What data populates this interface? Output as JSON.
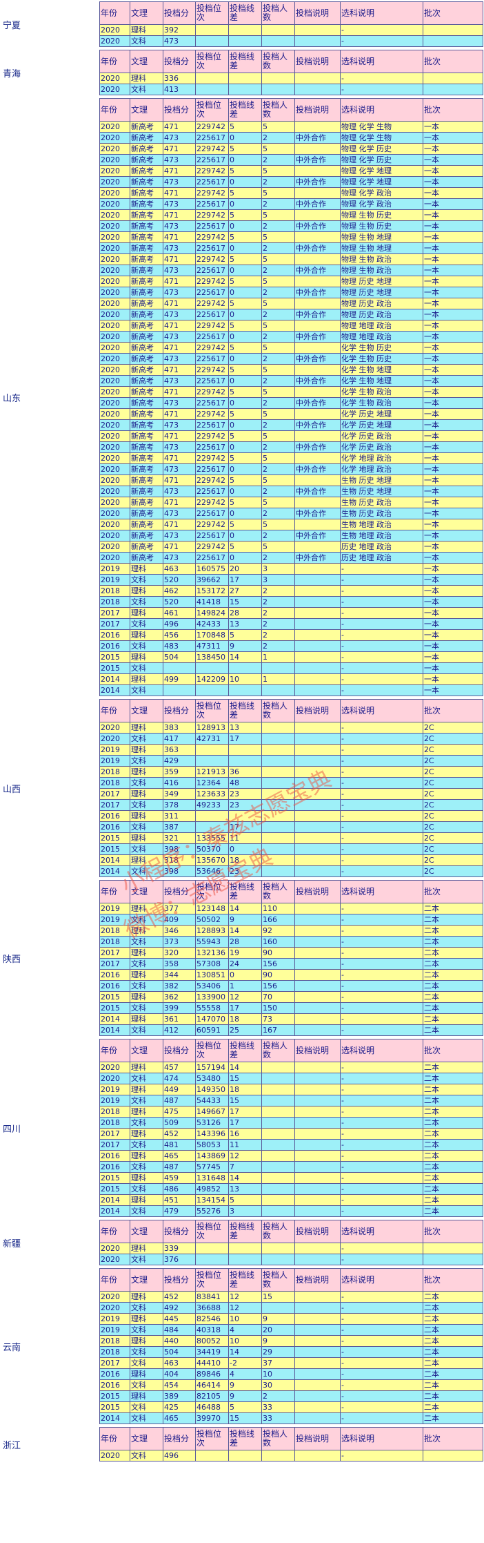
{
  "headers": [
    "年份",
    "文理",
    "投档分",
    "投档位次",
    "投档线差",
    "投档人数",
    "投档说明",
    "选科说明",
    "批次"
  ],
  "watermark": [
    "小程序：秦兹志愿宝典",
    "微博：志愿宝典"
  ],
  "provinces": [
    {
      "name": "宁夏",
      "rows": [
        [
          "2020",
          "理科",
          "392",
          "",
          "",
          "",
          "",
          "-",
          ""
        ],
        [
          "2020",
          "文科",
          "473",
          "",
          "",
          "",
          "",
          "-",
          ""
        ]
      ]
    },
    {
      "name": "青海",
      "rows": [
        [
          "2020",
          "理科",
          "336",
          "",
          "",
          "",
          "",
          "-",
          ""
        ],
        [
          "2020",
          "文科",
          "413",
          "",
          "",
          "",
          "",
          "-",
          ""
        ]
      ]
    },
    {
      "name": "山东",
      "rows": [
        [
          "2020",
          "新高考",
          "471",
          "229742",
          "5",
          "5",
          "",
          "物理 化学 生物",
          "一本"
        ],
        [
          "2020",
          "新高考",
          "473",
          "225617",
          "0",
          "2",
          "中外合作",
          "物理 化学 生物",
          "一本"
        ],
        [
          "2020",
          "新高考",
          "471",
          "229742",
          "5",
          "5",
          "",
          "物理 化学 历史",
          "一本"
        ],
        [
          "2020",
          "新高考",
          "473",
          "225617",
          "0",
          "2",
          "中外合作",
          "物理 化学 历史",
          "一本"
        ],
        [
          "2020",
          "新高考",
          "471",
          "229742",
          "5",
          "5",
          "",
          "物理 化学 地理",
          "一本"
        ],
        [
          "2020",
          "新高考",
          "473",
          "225617",
          "0",
          "2",
          "中外合作",
          "物理 化学 地理",
          "一本"
        ],
        [
          "2020",
          "新高考",
          "471",
          "229742",
          "5",
          "5",
          "",
          "物理 化学 政治",
          "一本"
        ],
        [
          "2020",
          "新高考",
          "473",
          "225617",
          "0",
          "2",
          "中外合作",
          "物理 化学 政治",
          "一本"
        ],
        [
          "2020",
          "新高考",
          "471",
          "229742",
          "5",
          "5",
          "",
          "物理 生物 历史",
          "一本"
        ],
        [
          "2020",
          "新高考",
          "473",
          "225617",
          "0",
          "2",
          "中外合作",
          "物理 生物 历史",
          "一本"
        ],
        [
          "2020",
          "新高考",
          "471",
          "229742",
          "5",
          "5",
          "",
          "物理 生物 地理",
          "一本"
        ],
        [
          "2020",
          "新高考",
          "473",
          "225617",
          "0",
          "2",
          "中外合作",
          "物理 生物 地理",
          "一本"
        ],
        [
          "2020",
          "新高考",
          "471",
          "229742",
          "5",
          "5",
          "",
          "物理 生物 政治",
          "一本"
        ],
        [
          "2020",
          "新高考",
          "473",
          "225617",
          "0",
          "2",
          "中外合作",
          "物理 生物 政治",
          "一本"
        ],
        [
          "2020",
          "新高考",
          "471",
          "229742",
          "5",
          "5",
          "",
          "物理 历史 地理",
          "一本"
        ],
        [
          "2020",
          "新高考",
          "473",
          "225617",
          "0",
          "2",
          "中外合作",
          "物理 历史 地理",
          "一本"
        ],
        [
          "2020",
          "新高考",
          "471",
          "229742",
          "5",
          "5",
          "",
          "物理 历史 政治",
          "一本"
        ],
        [
          "2020",
          "新高考",
          "473",
          "225617",
          "0",
          "2",
          "中外合作",
          "物理 历史 政治",
          "一本"
        ],
        [
          "2020",
          "新高考",
          "471",
          "229742",
          "5",
          "5",
          "",
          "物理 地理 政治",
          "一本"
        ],
        [
          "2020",
          "新高考",
          "473",
          "225617",
          "0",
          "2",
          "中外合作",
          "物理 地理 政治",
          "一本"
        ],
        [
          "2020",
          "新高考",
          "471",
          "229742",
          "5",
          "5",
          "",
          "化学 生物 历史",
          "一本"
        ],
        [
          "2020",
          "新高考",
          "473",
          "225617",
          "0",
          "2",
          "中外合作",
          "化学 生物 历史",
          "一本"
        ],
        [
          "2020",
          "新高考",
          "471",
          "229742",
          "5",
          "5",
          "",
          "化学 生物 地理",
          "一本"
        ],
        [
          "2020",
          "新高考",
          "473",
          "225617",
          "0",
          "2",
          "中外合作",
          "化学 生物 地理",
          "一本"
        ],
        [
          "2020",
          "新高考",
          "471",
          "229742",
          "5",
          "5",
          "",
          "化学 生物 政治",
          "一本"
        ],
        [
          "2020",
          "新高考",
          "473",
          "225617",
          "0",
          "2",
          "中外合作",
          "化学 生物 政治",
          "一本"
        ],
        [
          "2020",
          "新高考",
          "471",
          "229742",
          "5",
          "5",
          "",
          "化学 历史 地理",
          "一本"
        ],
        [
          "2020",
          "新高考",
          "473",
          "225617",
          "0",
          "2",
          "中外合作",
          "化学 历史 地理",
          "一本"
        ],
        [
          "2020",
          "新高考",
          "471",
          "229742",
          "5",
          "5",
          "",
          "化学 历史 政治",
          "一本"
        ],
        [
          "2020",
          "新高考",
          "473",
          "225617",
          "0",
          "2",
          "中外合作",
          "化学 历史 政治",
          "一本"
        ],
        [
          "2020",
          "新高考",
          "471",
          "229742",
          "5",
          "5",
          "",
          "化学 地理 政治",
          "一本"
        ],
        [
          "2020",
          "新高考",
          "473",
          "225617",
          "0",
          "2",
          "中外合作",
          "化学 地理 政治",
          "一本"
        ],
        [
          "2020",
          "新高考",
          "471",
          "229742",
          "5",
          "5",
          "",
          "生物 历史 地理",
          "一本"
        ],
        [
          "2020",
          "新高考",
          "473",
          "225617",
          "0",
          "2",
          "中外合作",
          "生物 历史 地理",
          "一本"
        ],
        [
          "2020",
          "新高考",
          "471",
          "229742",
          "5",
          "5",
          "",
          "生物 历史 政治",
          "一本"
        ],
        [
          "2020",
          "新高考",
          "473",
          "225617",
          "0",
          "2",
          "中外合作",
          "生物 历史 政治",
          "一本"
        ],
        [
          "2020",
          "新高考",
          "471",
          "229742",
          "5",
          "5",
          "",
          "生物 地理 政治",
          "一本"
        ],
        [
          "2020",
          "新高考",
          "473",
          "225617",
          "0",
          "2",
          "中外合作",
          "生物 地理 政治",
          "一本"
        ],
        [
          "2020",
          "新高考",
          "471",
          "229742",
          "5",
          "5",
          "",
          "历史 地理 政治",
          "一本"
        ],
        [
          "2020",
          "新高考",
          "473",
          "225617",
          "0",
          "2",
          "中外合作",
          "历史 地理 政治",
          "一本"
        ],
        [
          "2019",
          "理科",
          "463",
          "160575",
          "20",
          "3",
          "",
          "-",
          "一本"
        ],
        [
          "2019",
          "文科",
          "520",
          "39662",
          "17",
          "3",
          "",
          "-",
          "一本"
        ],
        [
          "2018",
          "理科",
          "462",
          "153172",
          "27",
          "2",
          "",
          "-",
          "一本"
        ],
        [
          "2018",
          "文科",
          "520",
          "41418",
          "15",
          "2",
          "",
          "-",
          "一本"
        ],
        [
          "2017",
          "理科",
          "461",
          "149824",
          "28",
          "2",
          "",
          "-",
          "一本"
        ],
        [
          "2017",
          "文科",
          "496",
          "42433",
          "13",
          "2",
          "",
          "-",
          "一本"
        ],
        [
          "2016",
          "理科",
          "456",
          "170848",
          "5",
          "2",
          "",
          "-",
          "一本"
        ],
        [
          "2016",
          "文科",
          "483",
          "47311",
          "9",
          "2",
          "",
          "-",
          "一本"
        ],
        [
          "2015",
          "理科",
          "504",
          "138450",
          "14",
          "1",
          "",
          "-",
          "一本"
        ],
        [
          "2015",
          "文科",
          "",
          "",
          "",
          "",
          "",
          "-",
          "一本"
        ],
        [
          "2014",
          "理科",
          "499",
          "142209",
          "10",
          "1",
          "",
          "-",
          "一本"
        ],
        [
          "2014",
          "文科",
          "",
          "",
          "",
          "",
          "",
          "-",
          "一本"
        ]
      ]
    },
    {
      "name": "山西",
      "rows": [
        [
          "2020",
          "理科",
          "383",
          "128913",
          "13",
          "",
          "",
          "-",
          "2C"
        ],
        [
          "2020",
          "文科",
          "417",
          "42731",
          "17",
          "",
          "",
          "-",
          "2C"
        ],
        [
          "2019",
          "理科",
          "363",
          "",
          "",
          "",
          "",
          "-",
          "2C"
        ],
        [
          "2019",
          "文科",
          "429",
          "",
          "",
          "",
          "",
          "-",
          "2C"
        ],
        [
          "2018",
          "理科",
          "359",
          "121913",
          "36",
          "",
          "",
          "-",
          "2C"
        ],
        [
          "2018",
          "文科",
          "416",
          "12364",
          "48",
          "",
          "",
          "-",
          "2C"
        ],
        [
          "2017",
          "理科",
          "349",
          "123633",
          "23",
          "",
          "",
          "-",
          "2C"
        ],
        [
          "2017",
          "文科",
          "378",
          "49233",
          "23",
          "",
          "",
          "-",
          "2C"
        ],
        [
          "2016",
          "理科",
          "311",
          "",
          "",
          "",
          "",
          "-",
          "2C"
        ],
        [
          "2016",
          "文科",
          "387",
          "",
          "17",
          "",
          "",
          "-",
          "2C"
        ],
        [
          "2015",
          "理科",
          "321",
          "133555",
          "11",
          "",
          "",
          "-",
          "2C"
        ],
        [
          "2015",
          "文科",
          "398",
          "50370",
          "0",
          "",
          "",
          "-",
          "2C"
        ],
        [
          "2014",
          "理科",
          "318",
          "135670",
          "18",
          "",
          "",
          "-",
          "2C"
        ],
        [
          "2014",
          "文科",
          "398",
          "53646",
          "23",
          "",
          "",
          "-",
          "2C"
        ]
      ]
    },
    {
      "name": "陕西",
      "rows": [
        [
          "2019",
          "理科",
          "377",
          "123148",
          "14",
          "110",
          "",
          "-",
          "二本"
        ],
        [
          "2019",
          "文科",
          "409",
          "50502",
          "9",
          "166",
          "",
          "-",
          "二本"
        ],
        [
          "2018",
          "理科",
          "346",
          "128893",
          "14",
          "92",
          "",
          "-",
          "二本"
        ],
        [
          "2018",
          "文科",
          "373",
          "55943",
          "28",
          "160",
          "",
          "-",
          "二本"
        ],
        [
          "2017",
          "理科",
          "320",
          "132136",
          "19",
          "90",
          "",
          "-",
          "二本"
        ],
        [
          "2017",
          "文科",
          "358",
          "57308",
          "24",
          "156",
          "",
          "-",
          "二本"
        ],
        [
          "2016",
          "理科",
          "344",
          "130851",
          "0",
          "90",
          "",
          "-",
          "二本"
        ],
        [
          "2016",
          "文科",
          "382",
          "53406",
          "1",
          "156",
          "",
          "-",
          "二本"
        ],
        [
          "2015",
          "理科",
          "362",
          "133900",
          "12",
          "70",
          "",
          "-",
          "二本"
        ],
        [
          "2015",
          "文科",
          "399",
          "55558",
          "17",
          "150",
          "",
          "-",
          "二本"
        ],
        [
          "2014",
          "理科",
          "361",
          "147070",
          "18",
          "73",
          "",
          "-",
          "二本"
        ],
        [
          "2014",
          "文科",
          "412",
          "60591",
          "25",
          "167",
          "",
          "-",
          "二本"
        ]
      ]
    },
    {
      "name": "四川",
      "rows": [
        [
          "2020",
          "理科",
          "457",
          "157194",
          "14",
          "",
          "",
          "-",
          "二本"
        ],
        [
          "2020",
          "文科",
          "474",
          "53480",
          "15",
          "",
          "",
          "-",
          "二本"
        ],
        [
          "2019",
          "理科",
          "449",
          "149350",
          "18",
          "",
          "",
          "-",
          "二本"
        ],
        [
          "2019",
          "文科",
          "487",
          "54433",
          "15",
          "",
          "",
          "-",
          "二本"
        ],
        [
          "2018",
          "理科",
          "475",
          "149667",
          "17",
          "",
          "",
          "-",
          "二本"
        ],
        [
          "2018",
          "文科",
          "509",
          "53126",
          "17",
          "",
          "",
          "-",
          "二本"
        ],
        [
          "2017",
          "理科",
          "452",
          "143396",
          "16",
          "",
          "",
          "-",
          "二本"
        ],
        [
          "2017",
          "文科",
          "481",
          "58053",
          "11",
          "",
          "",
          "-",
          "二本"
        ],
        [
          "2016",
          "理科",
          "465",
          "143869",
          "12",
          "",
          "",
          "-",
          "二本"
        ],
        [
          "2016",
          "文科",
          "487",
          "57745",
          "7",
          "",
          "",
          "-",
          "二本"
        ],
        [
          "2015",
          "理科",
          "459",
          "131648",
          "14",
          "",
          "",
          "-",
          "二本"
        ],
        [
          "2015",
          "文科",
          "486",
          "49852",
          "13",
          "",
          "",
          "-",
          "二本"
        ],
        [
          "2014",
          "理科",
          "451",
          "134154",
          "5",
          "",
          "",
          "-",
          "二本"
        ],
        [
          "2014",
          "文科",
          "479",
          "55276",
          "3",
          "",
          "",
          "-",
          "二本"
        ]
      ]
    },
    {
      "name": "新疆",
      "rows": [
        [
          "2020",
          "理科",
          "339",
          "",
          "",
          "",
          "",
          "-",
          ""
        ],
        [
          "2020",
          "文科",
          "376",
          "",
          "",
          "",
          "",
          "-",
          ""
        ]
      ]
    },
    {
      "name": "云南",
      "rows": [
        [
          "2020",
          "理科",
          "452",
          "83841",
          "12",
          "15",
          "",
          "-",
          "二本"
        ],
        [
          "2020",
          "文科",
          "492",
          "36688",
          "12",
          "",
          "",
          "-",
          "二本"
        ],
        [
          "2019",
          "理科",
          "445",
          "82546",
          "10",
          "9",
          "",
          "-",
          "二本"
        ],
        [
          "2019",
          "文科",
          "484",
          "40318",
          "4",
          "20",
          "",
          "-",
          "二本"
        ],
        [
          "2018",
          "理科",
          "440",
          "80052",
          "10",
          "9",
          "",
          "-",
          "二本"
        ],
        [
          "2018",
          "文科",
          "504",
          "34419",
          "14",
          "29",
          "",
          "-",
          "二本"
        ],
        [
          "2017",
          "文科",
          "463",
          "44410",
          "-2",
          "37",
          "",
          "-",
          "二本"
        ],
        [
          "2016",
          "理科",
          "404",
          "89846",
          "4",
          "10",
          "",
          "-",
          "二本"
        ],
        [
          "2016",
          "文科",
          "454",
          "46414",
          "9",
          "30",
          "",
          "-",
          "二本"
        ],
        [
          "2015",
          "理科",
          "389",
          "82105",
          "9",
          "2",
          "",
          "-",
          "二本"
        ],
        [
          "2015",
          "文科",
          "425",
          "46488",
          "5",
          "33",
          "",
          "-",
          "二本"
        ],
        [
          "2014",
          "文科",
          "465",
          "39970",
          "15",
          "33",
          "",
          "-",
          "二本"
        ]
      ]
    },
    {
      "name": "浙江",
      "rows": [
        [
          "2020",
          "文科",
          "496",
          "",
          "",
          "",
          "",
          "-",
          ""
        ]
      ]
    }
  ]
}
